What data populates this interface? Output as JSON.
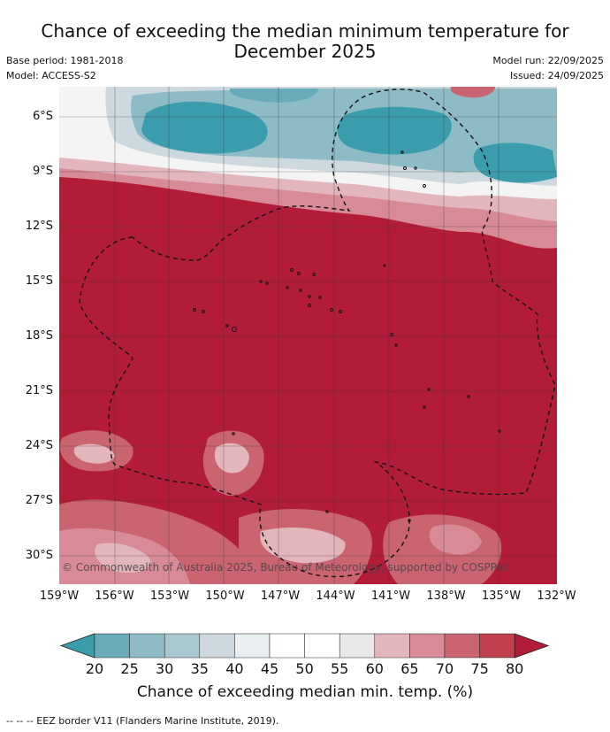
{
  "header": {
    "title_line1": "Chance of exceeding the median minimum temperature for",
    "title_line2": "December 2025",
    "base_period": "Base period: 1981-2018",
    "model": "Model: ACCESS-S2",
    "model_run": "Model run: 22/09/2025",
    "issued": "Issued: 24/09/2025"
  },
  "map": {
    "lat_labels": [
      "6°S",
      "9°S",
      "12°S",
      "15°S",
      "18°S",
      "21°S",
      "24°S",
      "27°S",
      "30°S"
    ],
    "lon_labels": [
      "159°W",
      "156°W",
      "153°W",
      "150°W",
      "147°W",
      "144°W",
      "141°W",
      "138°W",
      "135°W",
      "132°W"
    ],
    "copyright": "© Commonwealth of Australia 2025, Bureau of Meteorology, supported by COSPPac"
  },
  "colorbar": {
    "ticks": [
      "20",
      "25",
      "30",
      "35",
      "40",
      "45",
      "50",
      "55",
      "60",
      "65",
      "70",
      "75",
      "80"
    ],
    "colors": [
      "#3b9cad",
      "#6aabba",
      "#8dbcc7",
      "#a9c8cf",
      "#cdd9de",
      "#e9eef0",
      "#ffffff",
      "#ffffff",
      "#e8e8e8",
      "#e3b6bd",
      "#d88b96",
      "#c96470",
      "#c0404f",
      "#b21c39"
    ],
    "title": "Chance of exceeding median min. temp. (%)"
  },
  "footer": {
    "legend_text": "--  --  -- EEZ border V11 (Flanders Marine Institute, 2019)."
  }
}
